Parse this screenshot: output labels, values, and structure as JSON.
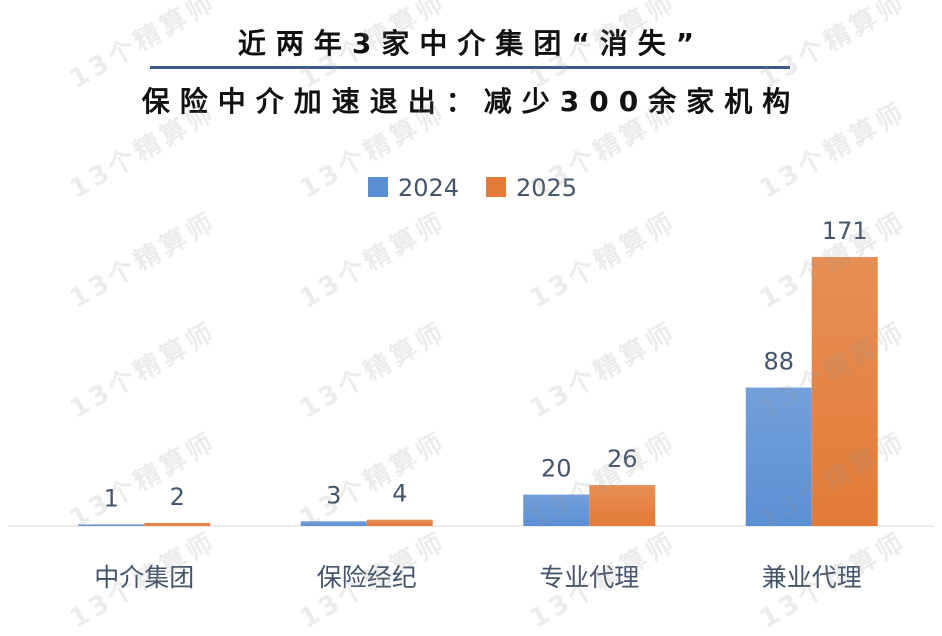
{
  "title_line1": "近两年3家中介集团“消失”",
  "title_line2": "保险中介加速退出：减少300余家机构",
  "watermark_text": "13个精算师",
  "colors": {
    "series_2024": "#5b8fd4",
    "series_2025": "#e37b37",
    "axis": "#d9d9d9",
    "label": "#44546a",
    "title_rule": "#3a5a8c"
  },
  "chart_data": {
    "type": "bar",
    "categories": [
      "中介集团",
      "保险经纪",
      "专业代理",
      "兼业代理"
    ],
    "series": [
      {
        "name": "2024",
        "values": [
          1,
          3,
          20,
          88
        ]
      },
      {
        "name": "2025",
        "values": [
          2,
          4,
          26,
          171
        ]
      }
    ],
    "legend_position": "top-center",
    "grid": false,
    "ylim": [
      0,
      171
    ]
  }
}
